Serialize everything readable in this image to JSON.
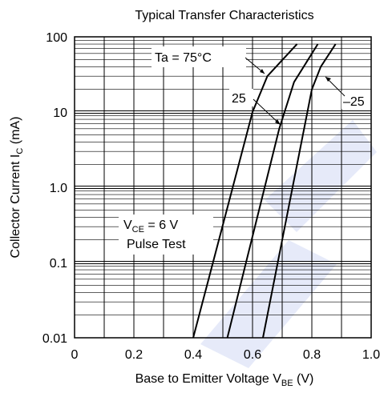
{
  "chart_data": {
    "type": "line",
    "title": "Typical Transfer Characteristics",
    "xlabel": {
      "main": "Base to Emitter Voltage  V",
      "sub": "BE",
      "unit": "  (V)"
    },
    "ylabel": {
      "main": "Collector Current  I",
      "sub": "C",
      "unit": "  (mA)"
    },
    "xlim": [
      0,
      1.0
    ],
    "ylim": [
      0.01,
      100
    ],
    "yscale": "log",
    "grid": true,
    "x_ticks": [
      "0",
      "0.2",
      "0.4",
      "0.6",
      "0.8",
      "1.0"
    ],
    "y_ticks": [
      "0.01",
      "0.1",
      "1.0",
      "10",
      "100"
    ],
    "series": [
      {
        "name": "Ta = 75°C",
        "x": [
          0.4,
          0.6,
          0.65,
          0.75
        ],
        "y": [
          0.01,
          10,
          30,
          80
        ]
      },
      {
        "name": "25",
        "x": [
          0.515,
          0.69,
          0.74,
          0.82
        ],
        "y": [
          0.01,
          6,
          25,
          80
        ]
      },
      {
        "name": "–25",
        "x": [
          0.635,
          0.8,
          0.83,
          0.88
        ],
        "y": [
          0.01,
          20,
          40,
          80
        ]
      }
    ],
    "annotations": {
      "vce": {
        "main": "V",
        "sub": "CE",
        "rest": " = 6 V"
      },
      "pulse": "Pulse Test"
    }
  }
}
